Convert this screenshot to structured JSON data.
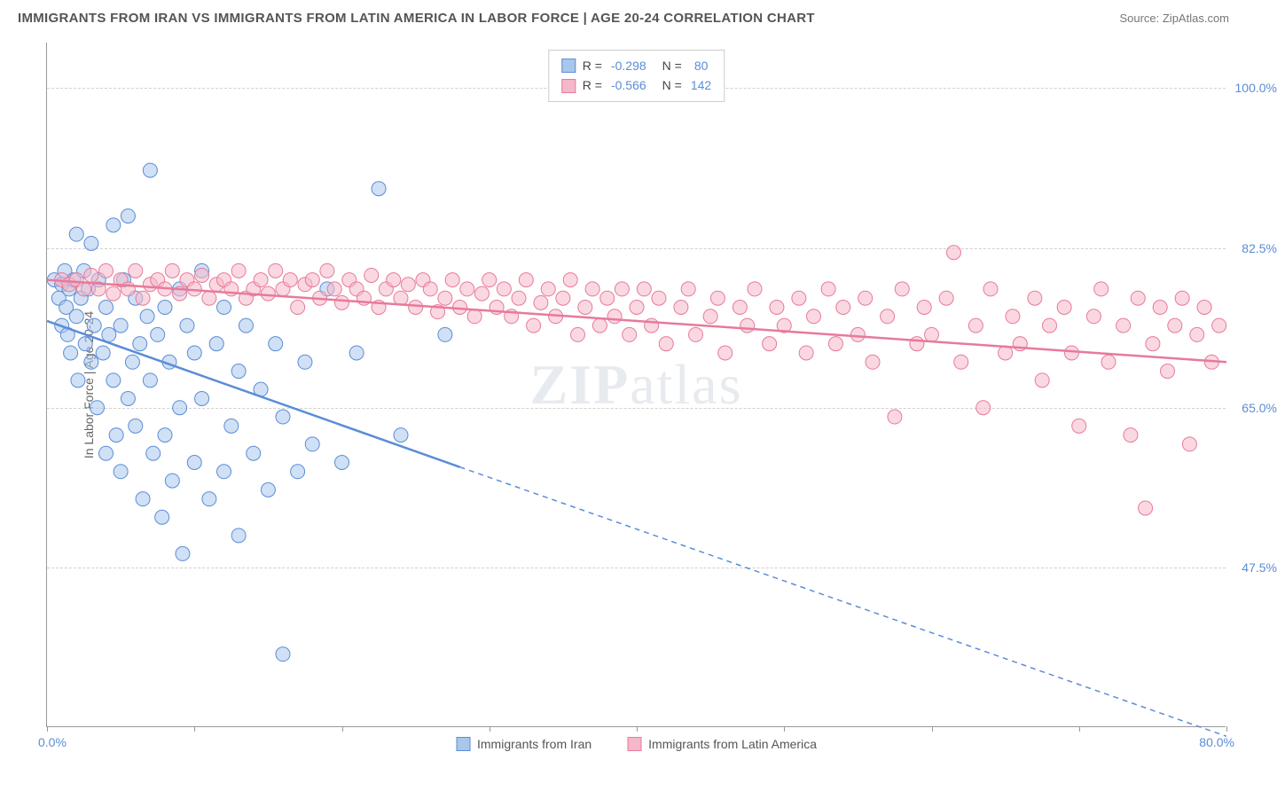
{
  "title": "IMMIGRANTS FROM IRAN VS IMMIGRANTS FROM LATIN AMERICA IN LABOR FORCE | AGE 20-24 CORRELATION CHART",
  "source": "Source: ZipAtlas.com",
  "ylabel": "In Labor Force | Age 20-24",
  "watermark_a": "ZIP",
  "watermark_b": "atlas",
  "chart": {
    "type": "scatter-correlation",
    "xlim": [
      0,
      80
    ],
    "ylim": [
      30,
      105
    ],
    "xtick_left": "0.0%",
    "xtick_right": "80.0%",
    "yticks": [
      {
        "v": 100.0,
        "label": "100.0%"
      },
      {
        "v": 82.5,
        "label": "82.5%"
      },
      {
        "v": 65.0,
        "label": "65.0%"
      },
      {
        "v": 47.5,
        "label": "47.5%"
      }
    ],
    "xtick_positions": [
      0,
      10,
      20,
      30,
      40,
      50,
      60,
      70,
      80
    ],
    "background_color": "#ffffff",
    "grid_color": "#d0d0d0",
    "axis_color": "#999999",
    "marker_radius": 8,
    "marker_opacity": 0.55,
    "series": [
      {
        "name": "Immigrants from Iran",
        "color_fill": "#a9c7ec",
        "color_stroke": "#5b8dd6",
        "R": "-0.298",
        "N": "80",
        "trend": {
          "x1": 0,
          "y1": 74.5,
          "x_solid_end": 28,
          "y_solid_end": 58.5,
          "x2": 80,
          "y2": 29.0,
          "width": 2.5,
          "dash": "6,5"
        },
        "points": [
          [
            0.5,
            79
          ],
          [
            0.8,
            77
          ],
          [
            1.0,
            78.5
          ],
          [
            1.0,
            74
          ],
          [
            1.2,
            80
          ],
          [
            1.3,
            76
          ],
          [
            1.4,
            73
          ],
          [
            1.5,
            78
          ],
          [
            1.6,
            71
          ],
          [
            1.8,
            79
          ],
          [
            2.0,
            84
          ],
          [
            2.0,
            75
          ],
          [
            2.1,
            68
          ],
          [
            2.3,
            77
          ],
          [
            2.5,
            80
          ],
          [
            2.6,
            72
          ],
          [
            2.8,
            78
          ],
          [
            3.0,
            70
          ],
          [
            3.0,
            83
          ],
          [
            3.2,
            74
          ],
          [
            3.4,
            65
          ],
          [
            3.5,
            79
          ],
          [
            3.8,
            71
          ],
          [
            4.0,
            76
          ],
          [
            4.0,
            60
          ],
          [
            4.2,
            73
          ],
          [
            4.5,
            68
          ],
          [
            4.5,
            85
          ],
          [
            4.7,
            62
          ],
          [
            5.0,
            74
          ],
          [
            5.0,
            58
          ],
          [
            5.2,
            79
          ],
          [
            5.5,
            66
          ],
          [
            5.5,
            86
          ],
          [
            5.8,
            70
          ],
          [
            6.0,
            63
          ],
          [
            6.0,
            77
          ],
          [
            6.3,
            72
          ],
          [
            6.5,
            55
          ],
          [
            6.8,
            75
          ],
          [
            7.0,
            91
          ],
          [
            7.0,
            68
          ],
          [
            7.2,
            60
          ],
          [
            7.5,
            73
          ],
          [
            7.8,
            53
          ],
          [
            8.0,
            76
          ],
          [
            8.0,
            62
          ],
          [
            8.3,
            70
          ],
          [
            8.5,
            57
          ],
          [
            9.0,
            78
          ],
          [
            9.0,
            65
          ],
          [
            9.2,
            49
          ],
          [
            9.5,
            74
          ],
          [
            10.0,
            59
          ],
          [
            10.0,
            71
          ],
          [
            10.5,
            66
          ],
          [
            10.5,
            80
          ],
          [
            11.0,
            55
          ],
          [
            11.5,
            72
          ],
          [
            12.0,
            58
          ],
          [
            12.0,
            76
          ],
          [
            12.5,
            63
          ],
          [
            13.0,
            69
          ],
          [
            13.0,
            51
          ],
          [
            13.5,
            74
          ],
          [
            14.0,
            60
          ],
          [
            14.5,
            67
          ],
          [
            15.0,
            56
          ],
          [
            15.5,
            72
          ],
          [
            16.0,
            38
          ],
          [
            16.0,
            64
          ],
          [
            17.0,
            58
          ],
          [
            17.5,
            70
          ],
          [
            18.0,
            61
          ],
          [
            19.0,
            78
          ],
          [
            20.0,
            59
          ],
          [
            21.0,
            71
          ],
          [
            22.5,
            89
          ],
          [
            24.0,
            62
          ],
          [
            27.0,
            73
          ]
        ]
      },
      {
        "name": "Immigrants from Latin America",
        "color_fill": "#f5b8c8",
        "color_stroke": "#e77a9a",
        "R": "-0.566",
        "N": "142",
        "trend": {
          "x1": 0,
          "y1": 79.0,
          "x_solid_end": 80,
          "y_solid_end": 70.0,
          "x2": 80,
          "y2": 70.0,
          "width": 2.5,
          "dash": "none"
        },
        "points": [
          [
            1,
            79
          ],
          [
            1.5,
            78.5
          ],
          [
            2,
            79
          ],
          [
            2.5,
            78
          ],
          [
            3,
            79.5
          ],
          [
            3.5,
            78
          ],
          [
            4,
            80
          ],
          [
            4.5,
            77.5
          ],
          [
            5,
            79
          ],
          [
            5.5,
            78
          ],
          [
            6,
            80
          ],
          [
            6.5,
            77
          ],
          [
            7,
            78.5
          ],
          [
            7.5,
            79
          ],
          [
            8,
            78
          ],
          [
            8.5,
            80
          ],
          [
            9,
            77.5
          ],
          [
            9.5,
            79
          ],
          [
            10,
            78
          ],
          [
            10.5,
            79.5
          ],
          [
            11,
            77
          ],
          [
            11.5,
            78.5
          ],
          [
            12,
            79
          ],
          [
            12.5,
            78
          ],
          [
            13,
            80
          ],
          [
            13.5,
            77
          ],
          [
            14,
            78
          ],
          [
            14.5,
            79
          ],
          [
            15,
            77.5
          ],
          [
            15.5,
            80
          ],
          [
            16,
            78
          ],
          [
            16.5,
            79
          ],
          [
            17,
            76
          ],
          [
            17.5,
            78.5
          ],
          [
            18,
            79
          ],
          [
            18.5,
            77
          ],
          [
            19,
            80
          ],
          [
            19.5,
            78
          ],
          [
            20,
            76.5
          ],
          [
            20.5,
            79
          ],
          [
            21,
            78
          ],
          [
            21.5,
            77
          ],
          [
            22,
            79.5
          ],
          [
            22.5,
            76
          ],
          [
            23,
            78
          ],
          [
            23.5,
            79
          ],
          [
            24,
            77
          ],
          [
            24.5,
            78.5
          ],
          [
            25,
            76
          ],
          [
            25.5,
            79
          ],
          [
            26,
            78
          ],
          [
            26.5,
            75.5
          ],
          [
            27,
            77
          ],
          [
            27.5,
            79
          ],
          [
            28,
            76
          ],
          [
            28.5,
            78
          ],
          [
            29,
            75
          ],
          [
            29.5,
            77.5
          ],
          [
            30,
            79
          ],
          [
            30.5,
            76
          ],
          [
            31,
            78
          ],
          [
            31.5,
            75
          ],
          [
            32,
            77
          ],
          [
            32.5,
            79
          ],
          [
            33,
            74
          ],
          [
            33.5,
            76.5
          ],
          [
            34,
            78
          ],
          [
            34.5,
            75
          ],
          [
            35,
            77
          ],
          [
            35.5,
            79
          ],
          [
            36,
            73
          ],
          [
            36.5,
            76
          ],
          [
            37,
            78
          ],
          [
            37.5,
            74
          ],
          [
            38,
            77
          ],
          [
            38.5,
            75
          ],
          [
            39,
            78
          ],
          [
            39.5,
            73
          ],
          [
            40,
            76
          ],
          [
            40.5,
            78
          ],
          [
            41,
            74
          ],
          [
            41.5,
            77
          ],
          [
            42,
            72
          ],
          [
            43,
            76
          ],
          [
            43.5,
            78
          ],
          [
            44,
            73
          ],
          [
            45,
            75
          ],
          [
            45.5,
            77
          ],
          [
            46,
            71
          ],
          [
            47,
            76
          ],
          [
            47.5,
            74
          ],
          [
            48,
            78
          ],
          [
            49,
            72
          ],
          [
            49.5,
            76
          ],
          [
            50,
            74
          ],
          [
            51,
            77
          ],
          [
            51.5,
            71
          ],
          [
            52,
            75
          ],
          [
            53,
            78
          ],
          [
            53.5,
            72
          ],
          [
            54,
            76
          ],
          [
            55,
            73
          ],
          [
            55.5,
            77
          ],
          [
            56,
            70
          ],
          [
            57,
            75
          ],
          [
            57.5,
            64
          ],
          [
            58,
            78
          ],
          [
            59,
            72
          ],
          [
            59.5,
            76
          ],
          [
            60,
            73
          ],
          [
            61,
            77
          ],
          [
            61.5,
            82
          ],
          [
            62,
            70
          ],
          [
            63,
            74
          ],
          [
            63.5,
            65
          ],
          [
            64,
            78
          ],
          [
            65,
            71
          ],
          [
            65.5,
            75
          ],
          [
            66,
            72
          ],
          [
            67,
            77
          ],
          [
            67.5,
            68
          ],
          [
            68,
            74
          ],
          [
            69,
            76
          ],
          [
            69.5,
            71
          ],
          [
            70,
            63
          ],
          [
            71,
            75
          ],
          [
            71.5,
            78
          ],
          [
            72,
            70
          ],
          [
            73,
            74
          ],
          [
            73.5,
            62
          ],
          [
            74,
            77
          ],
          [
            74.5,
            54
          ],
          [
            75,
            72
          ],
          [
            75.5,
            76
          ],
          [
            76,
            69
          ],
          [
            76.5,
            74
          ],
          [
            77,
            77
          ],
          [
            77.5,
            61
          ],
          [
            78,
            73
          ],
          [
            78.5,
            76
          ],
          [
            79,
            70
          ],
          [
            79.5,
            74
          ]
        ]
      }
    ]
  },
  "legend_labels": {
    "R": "R =",
    "N": "N ="
  }
}
